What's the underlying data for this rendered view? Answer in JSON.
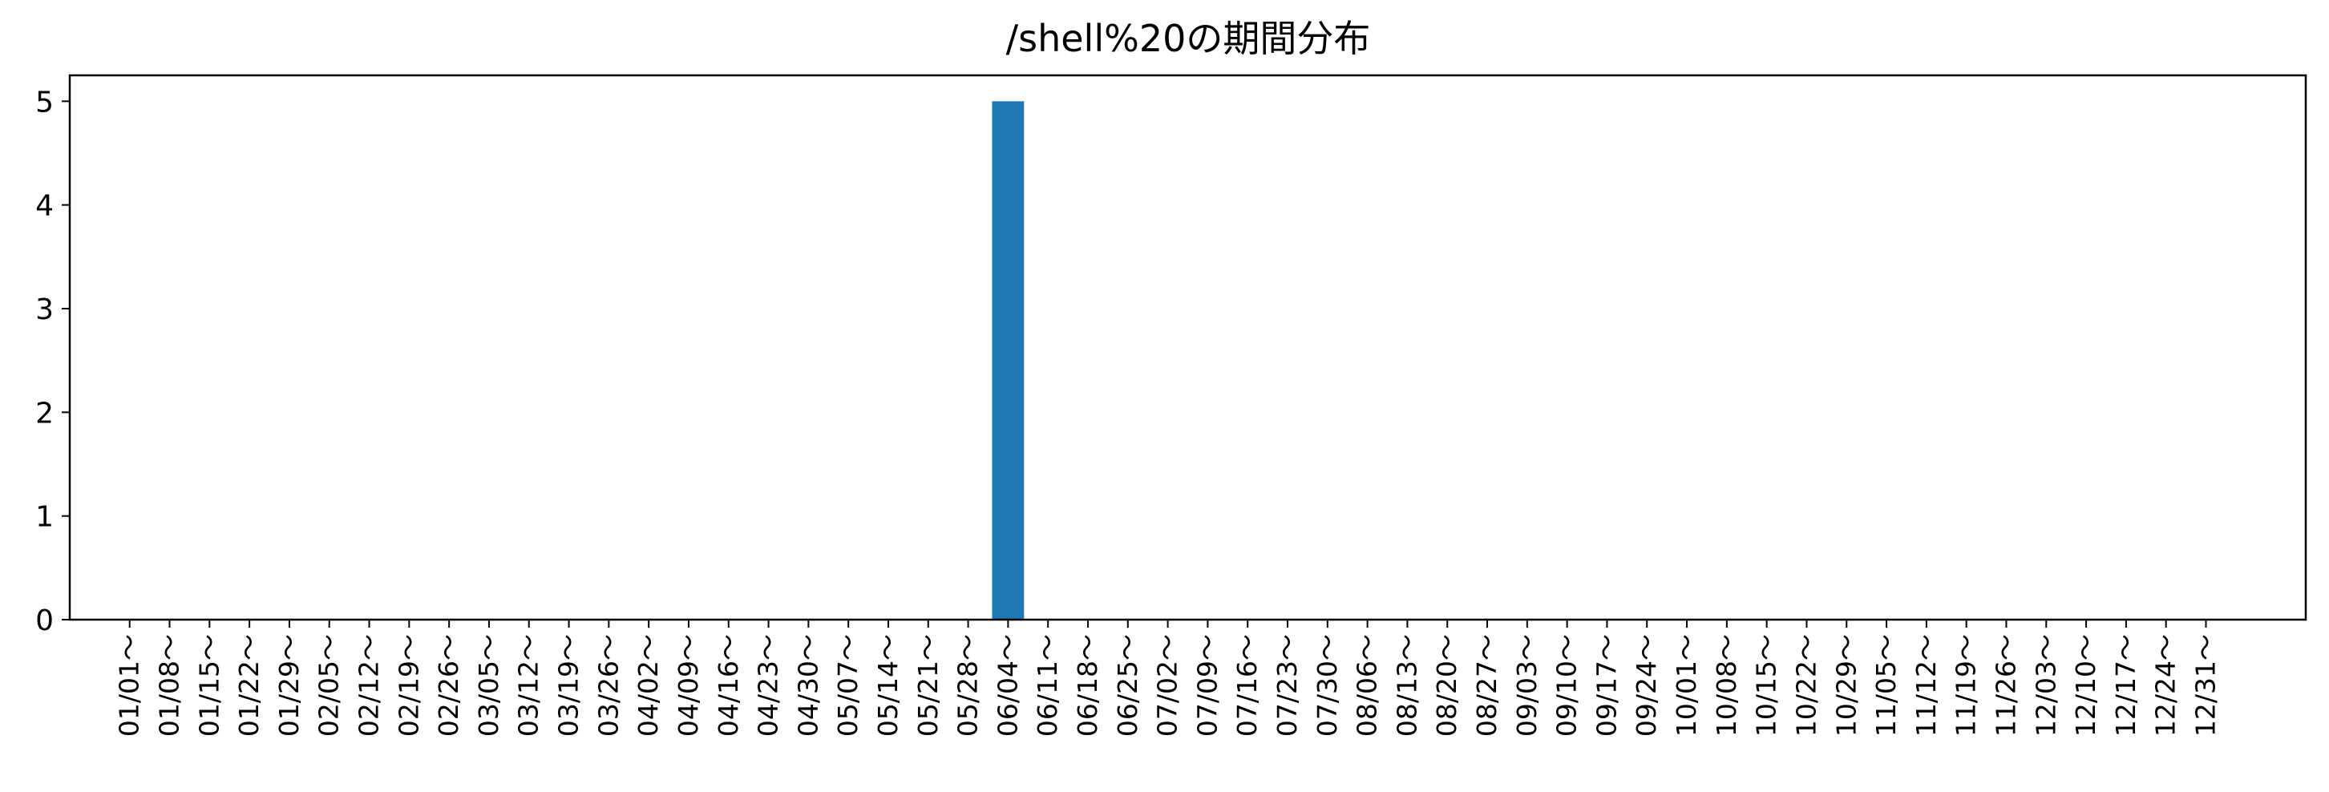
{
  "chart_data": {
    "type": "bar",
    "title": "/shell%20の期間分布",
    "xlabel": "",
    "ylabel": "",
    "ylim": [
      0,
      5.25
    ],
    "yticks": [
      0,
      1,
      2,
      3,
      4,
      5
    ],
    "grid": false,
    "bar_color": "#1f77b4",
    "categories": [
      "01/01～",
      "01/08～",
      "01/15～",
      "01/22～",
      "01/29～",
      "02/05～",
      "02/12～",
      "02/19～",
      "02/26～",
      "03/05～",
      "03/12～",
      "03/19～",
      "03/26～",
      "04/02～",
      "04/09～",
      "04/16～",
      "04/23～",
      "04/30～",
      "05/07～",
      "05/14～",
      "05/21～",
      "05/28～",
      "06/04～",
      "06/11～",
      "06/18～",
      "06/25～",
      "07/02～",
      "07/09～",
      "07/16～",
      "07/23～",
      "07/30～",
      "08/06～",
      "08/13～",
      "08/20～",
      "08/27～",
      "09/03～",
      "09/10～",
      "09/17～",
      "09/24～",
      "10/01～",
      "10/08～",
      "10/15～",
      "10/22～",
      "10/29～",
      "11/05～",
      "11/12～",
      "11/19～",
      "11/26～",
      "12/03～",
      "12/10～",
      "12/17～",
      "12/24～",
      "12/31～"
    ],
    "values": [
      0,
      0,
      0,
      0,
      0,
      0,
      0,
      0,
      0,
      0,
      0,
      0,
      0,
      0,
      0,
      0,
      0,
      0,
      0,
      0,
      0,
      0,
      5,
      0,
      0,
      0,
      0,
      0,
      0,
      0,
      0,
      0,
      0,
      0,
      0,
      0,
      0,
      0,
      0,
      0,
      0,
      0,
      0,
      0,
      0,
      0,
      0,
      0,
      0,
      0,
      0,
      0,
      0
    ]
  }
}
